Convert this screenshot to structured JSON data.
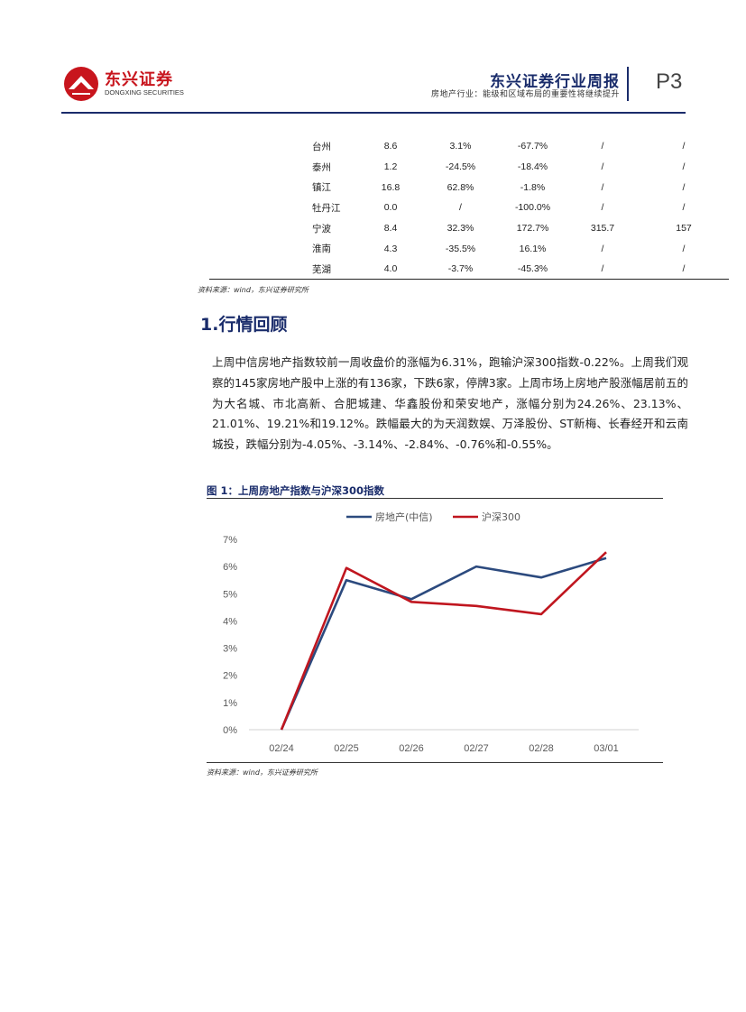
{
  "header": {
    "logo_cn": "东兴证券",
    "logo_en": "DONGXING SECURITIES",
    "report_title": "东兴证券行业周报",
    "report_subtitle": "房地产行业：能级和区域布局的重要性将继续提升",
    "page_number": "P3",
    "colors": {
      "brand_red": "#c8151d",
      "brand_navy": "#1a2c6b"
    }
  },
  "table": {
    "rows": [
      [
        "台州",
        "8.6",
        "3.1%",
        "-67.7%",
        "/",
        "/"
      ],
      [
        "泰州",
        "1.2",
        "-24.5%",
        "-18.4%",
        "/",
        "/"
      ],
      [
        "镇江",
        "16.8",
        "62.8%",
        "-1.8%",
        "/",
        "/"
      ],
      [
        "牡丹江",
        "0.0",
        "/",
        "-100.0%",
        "/",
        "/"
      ],
      [
        "宁波",
        "8.4",
        "32.3%",
        "172.7%",
        "315.7",
        "157"
      ],
      [
        "淮南",
        "4.3",
        "-35.5%",
        "16.1%",
        "/",
        "/"
      ],
      [
        "芜湖",
        "4.0",
        "-3.7%",
        "-45.3%",
        "/",
        "/"
      ]
    ],
    "source": "资料来源：wind，东兴证券研究所"
  },
  "section": {
    "heading": "1.行情回顾",
    "paragraph": "上周中信房地产指数较前一周收盘价的涨幅为6.31%，跑输沪深300指数-0.22%。上周我们观察的145家房地产股中上涨的有136家，下跌6家，停牌3家。上周市场上房地产股涨幅居前五的为大名城、市北高新、合肥城建、华鑫股份和荣安地产，涨幅分别为24.26%、23.13%、21.01%、19.21%和19.12%。跌幅最大的为天润数娱、万泽股份、ST新梅、长春经开和云南城投，跌幅分别为-4.05%、-3.14%、-2.84%、-0.76%和-0.55%。"
  },
  "figure": {
    "caption": "图 1：上周房地产指数与沪深300指数",
    "source": "资料来源：wind，东兴证券研究所"
  },
  "chart_data": {
    "type": "line",
    "title": "",
    "xlabel": "",
    "ylabel": "",
    "categories": [
      "02/24",
      "02/25",
      "02/26",
      "02/27",
      "02/28",
      "03/01"
    ],
    "y_ticks": [
      "0%",
      "1%",
      "2%",
      "3%",
      "4%",
      "5%",
      "6%",
      "7%"
    ],
    "ylim": [
      0,
      7
    ],
    "grid": false,
    "legend_position": "top",
    "series": [
      {
        "name": "房地产(中信)",
        "color": "#2c4a7e",
        "values": [
          0.0,
          5.5,
          4.8,
          6.0,
          5.6,
          6.31
        ]
      },
      {
        "name": "沪深300",
        "color": "#c0161f",
        "values": [
          0.0,
          5.95,
          4.7,
          4.55,
          4.25,
          6.53
        ]
      }
    ]
  }
}
